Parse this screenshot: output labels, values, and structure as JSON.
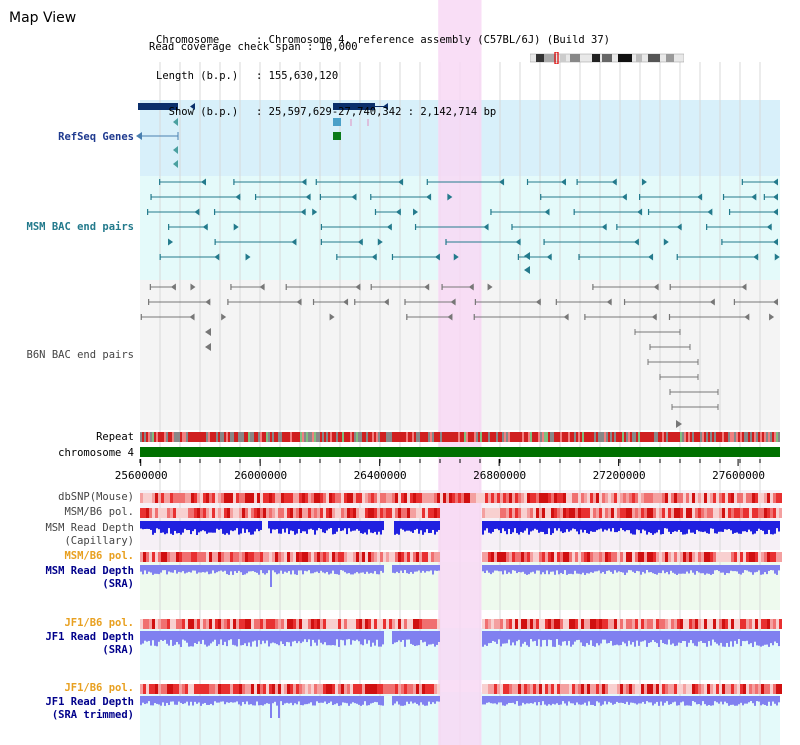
{
  "app": {
    "title": "Map View"
  },
  "info": {
    "chromosome_key": "Chromosome    ",
    "chromosome_value": ": Chromosome 4, reference assembly (C57BL/6J) (Build 37)",
    "length_key": "Length (b.p.) ",
    "length_value": ": 155,630,120",
    "show_key": "  Show (b.p.) ",
    "show_value": ": 25,597,629-27,740,342 : 2,142,714 bp",
    "coverage_line": "Read coverage check span : 10,000"
  },
  "tracks": {
    "refseq": "RefSeq Genes",
    "msm_bac": "MSM BAC end pairs",
    "b6n_bac": "B6N BAC end pairs",
    "repeat": "Repeat",
    "chromosome": "chromosome 4",
    "dbsnp": "dbSNP(Mouse)",
    "msm_b6_pol_1": "MSM/B6 pol.",
    "msm_depth_cap_1": "MSM Read Depth",
    "msm_depth_cap_2": "(Capillary)",
    "msm_b6_pol_2": "MSM/B6 pol.",
    "msm_depth_sra_1": "MSM Read Depth",
    "msm_depth_sra_2": "(SRA)",
    "jf1_b6_pol_1": "JF1/B6 pol.",
    "jf1_depth_sra_1": "JF1 Read Depth",
    "jf1_depth_sra_2": "(SRA)",
    "jf1_b6_pol_2": "JF1/B6 pol.",
    "jf1_depth_trim_1": "JF1 Read Depth",
    "jf1_depth_trim_2": "(SRA trimmed)"
  },
  "axis": {
    "ticks": [
      "25600000",
      "26000000",
      "26400000",
      "26800000",
      "27200000",
      "27600000"
    ],
    "tick_values": [
      25600000,
      26000000,
      26400000,
      26800000,
      27200000,
      27600000
    ],
    "start": 25597629,
    "end": 27740342
  },
  "highlight": {
    "start": 26596000,
    "end": 26741000
  },
  "colors": {
    "refseq_bg": "#d8f0fa",
    "msm_bac_bg": "#e4fafa",
    "b6n_bac_bg": "#f4f4f4",
    "highlight": "#f8d8f4",
    "refseq_gene": "#0b2f6b",
    "msm_feature": "#237a8c",
    "b6n_feature": "#777777",
    "chromosome_bar": "#007000",
    "repeat": "#d02020",
    "depth_capillary": "#2020e0",
    "depth_sra": "#8080f0"
  }
}
